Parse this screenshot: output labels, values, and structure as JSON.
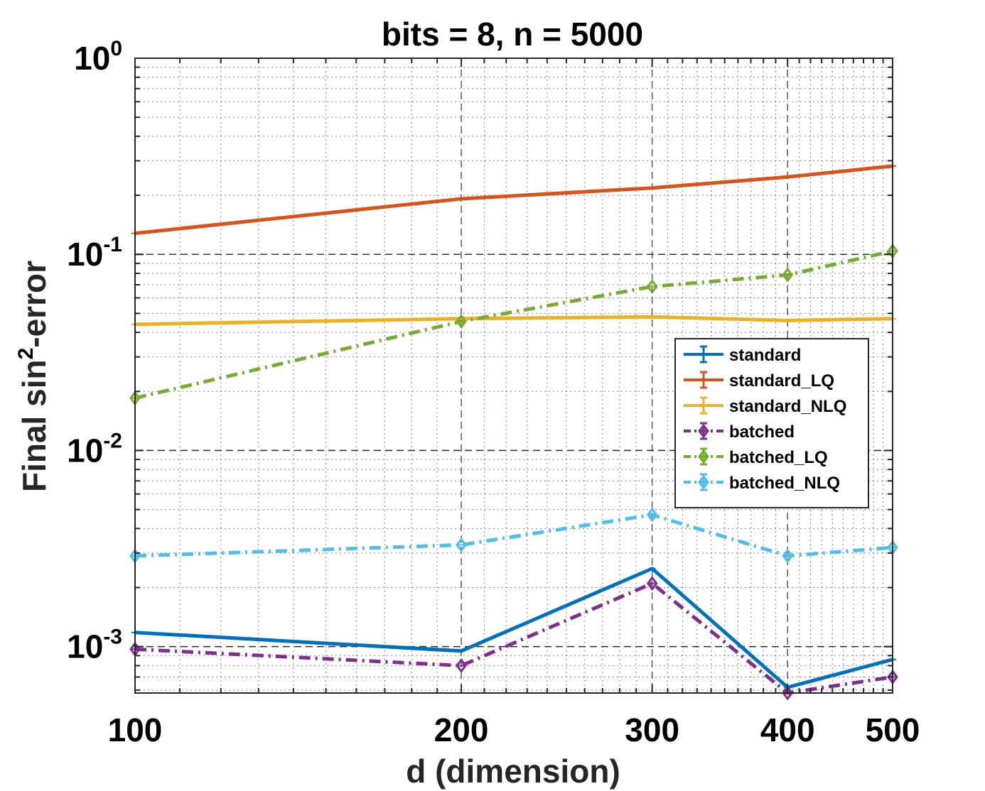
{
  "chart_data": {
    "type": "line",
    "title": "bits = 8, n = 5000",
    "xlabel": "d (dimension)",
    "ylabel": "Final sin²-error",
    "ylabel_parts": {
      "pre": "Final sin",
      "sup": "2",
      "post": "-error"
    },
    "xscale": "log",
    "yscale": "log",
    "xlim": [
      100,
      500
    ],
    "ylim": [
      0.00058,
      1
    ],
    "x": [
      100,
      200,
      300,
      400,
      500
    ],
    "xticks": [
      "100",
      "200",
      "300",
      "400",
      "500"
    ],
    "yticks": [
      {
        "value": 1,
        "base": "10",
        "exp": "0"
      },
      {
        "value": 0.1,
        "base": "10",
        "exp": "-1"
      },
      {
        "value": 0.01,
        "base": "10",
        "exp": "-2"
      },
      {
        "value": 0.001,
        "base": "10",
        "exp": "-3"
      }
    ],
    "grid": true,
    "legend_position": "right",
    "series": [
      {
        "name": "standard",
        "color": "#0072BD",
        "style": "solid",
        "marker": "none",
        "values": [
          0.00118,
          0.00095,
          0.0025,
          0.00062,
          0.00086
        ]
      },
      {
        "name": "standard_LQ",
        "color": "#D95319",
        "style": "solid",
        "marker": "none",
        "values": [
          0.128,
          0.192,
          0.218,
          0.248,
          0.282
        ]
      },
      {
        "name": "standard_NLQ",
        "color": "#EDB120",
        "style": "solid",
        "marker": "none",
        "values": [
          0.044,
          0.047,
          0.048,
          0.046,
          0.047
        ]
      },
      {
        "name": "batched",
        "color": "#7E2F8E",
        "style": "dashdot",
        "marker": "diamond",
        "values": [
          0.00097,
          0.0008,
          0.0021,
          0.00058,
          0.0007
        ]
      },
      {
        "name": "batched_LQ",
        "color": "#77AC30",
        "style": "dashdot",
        "marker": "diamond",
        "values": [
          0.0185,
          0.0455,
          0.0685,
          0.0785,
          0.104
        ]
      },
      {
        "name": "batched_NLQ",
        "color": "#4DBEEE",
        "style": "dashdot",
        "marker": "diamond",
        "values": [
          0.0029,
          0.0033,
          0.0047,
          0.0029,
          0.0032
        ]
      }
    ]
  }
}
